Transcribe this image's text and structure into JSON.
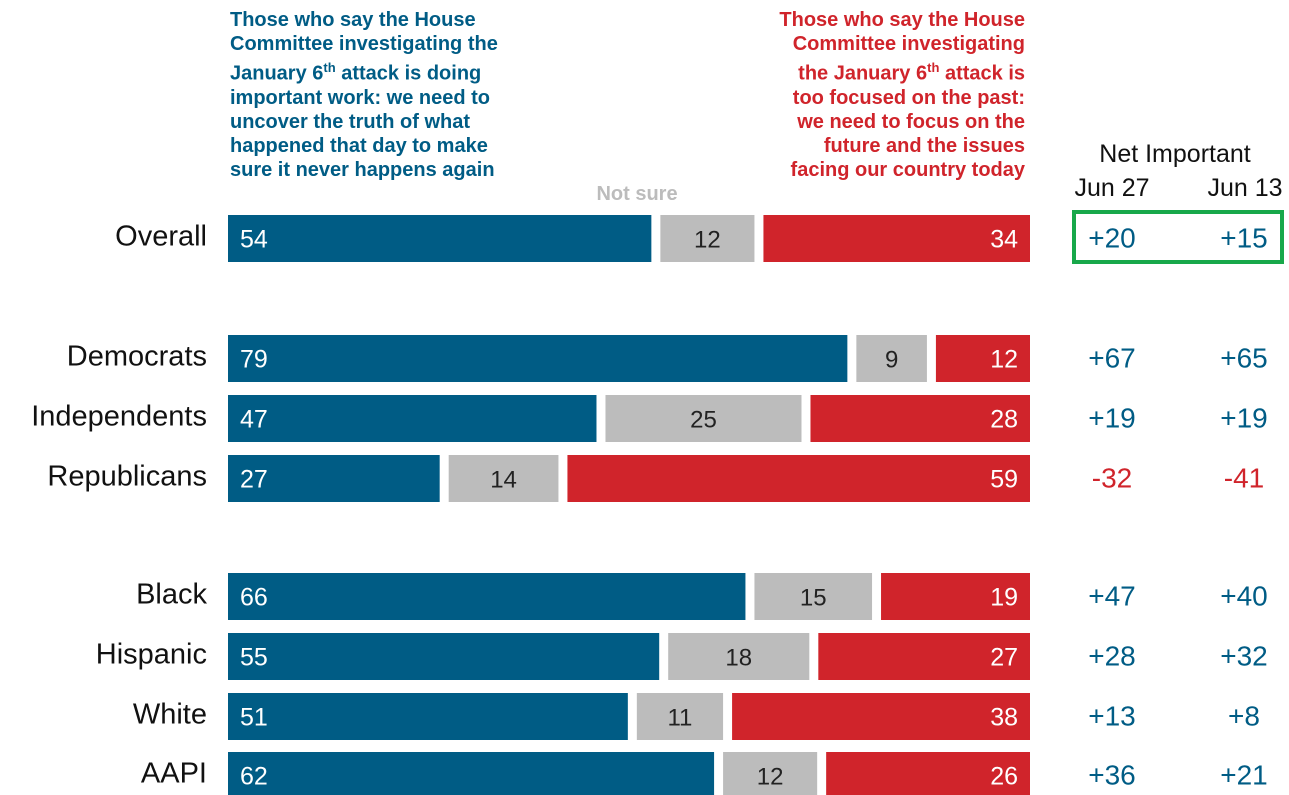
{
  "chart_data": {
    "type": "bar",
    "stacked": true,
    "orientation": "horizontal",
    "headers": {
      "important": [
        "Those who say the House",
        "Committee investigating the",
        "January 6th attack is doing",
        "important work: we need to",
        "uncover the truth of what",
        "happened that day to make",
        "sure it never happens again"
      ],
      "not_sure": "Not sure",
      "past": [
        "Those who say the House",
        "Committee investigating",
        "the January 6th attack is",
        "too focused on the past:",
        "we need to focus on the",
        "future and the issues",
        "facing our country today"
      ]
    },
    "net_title": "Net Important",
    "net_columns": [
      "Jun 27",
      "Jun 13"
    ],
    "categories": [
      "Overall",
      "Democrats",
      "Independents",
      "Republicans",
      "Black",
      "Hispanic",
      "White",
      "AAPI"
    ],
    "series": [
      {
        "name": "Important work",
        "values": [
          54,
          79,
          47,
          27,
          66,
          55,
          51,
          62
        ]
      },
      {
        "name": "Not sure",
        "values": [
          12,
          9,
          25,
          14,
          15,
          18,
          11,
          12
        ]
      },
      {
        "name": "Too focused on the past",
        "values": [
          34,
          12,
          28,
          59,
          19,
          27,
          38,
          26
        ]
      }
    ],
    "net_jun27": [
      "+20",
      "+67",
      "+19",
      "-32",
      "+47",
      "+28",
      "+13",
      "+36"
    ],
    "net_jun13": [
      "+15",
      "+65",
      "+19",
      "-41",
      "+40",
      "+32",
      "+8",
      "+21"
    ],
    "colors": {
      "important": "#005c85",
      "not_sure": "#bcbcbc",
      "past": "#d0242b",
      "highlight": "#18a84a",
      "net_positive": "#005c85",
      "net_negative": "#d0242b"
    },
    "highlighted_row": "Overall"
  }
}
